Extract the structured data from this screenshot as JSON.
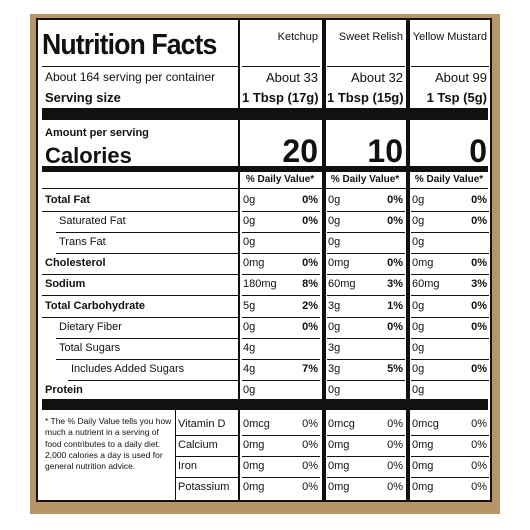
{
  "title": "Nutrition Facts",
  "servings_per_container": "About 164 serving per container",
  "serving_size_label": "Serving size",
  "amount_per_serving": "Amount per serving",
  "calories_label": "Calories",
  "dv_header": "% Daily Value*",
  "products": [
    {
      "name": "Ketchup",
      "servings": "About 33",
      "serving_size": "1 Tbsp (17g)",
      "calories": 20
    },
    {
      "name": "Sweet Relish",
      "servings": "About 32",
      "serving_size": "1 Tbsp (15g)",
      "calories": 10
    },
    {
      "name": "Yellow Mustard",
      "servings": "About 99",
      "serving_size": "1 Tsp (5g)",
      "calories": 0
    }
  ],
  "nutrients": [
    {
      "label": "Total Fat",
      "values": [
        {
          "amount": "0g",
          "dv": "0%"
        },
        {
          "amount": "0g",
          "dv": "0%"
        },
        {
          "amount": "0g",
          "dv": "0%"
        }
      ]
    },
    {
      "label": "Saturated Fat",
      "values": [
        {
          "amount": "0g",
          "dv": "0%"
        },
        {
          "amount": "0g",
          "dv": "0%"
        },
        {
          "amount": "0g",
          "dv": "0%"
        }
      ]
    },
    {
      "label": "Trans Fat",
      "values": [
        {
          "amount": "0g"
        },
        {
          "amount": "0g"
        },
        {
          "amount": "0g"
        }
      ]
    },
    {
      "label": "Cholesterol",
      "values": [
        {
          "amount": "0mg",
          "dv": "0%"
        },
        {
          "amount": "0mg",
          "dv": "0%"
        },
        {
          "amount": "0mg",
          "dv": "0%"
        }
      ]
    },
    {
      "label": "Sodium",
      "values": [
        {
          "amount": "180mg",
          "dv": "8%"
        },
        {
          "amount": "60mg",
          "dv": "3%"
        },
        {
          "amount": "60mg",
          "dv": "3%"
        }
      ]
    },
    {
      "label": "Total Carbohydrate",
      "values": [
        {
          "amount": "5g",
          "dv": "2%"
        },
        {
          "amount": "3g",
          "dv": "1%"
        },
        {
          "amount": "0g",
          "dv": "0%"
        }
      ]
    },
    {
      "label": "Dietary Fiber",
      "values": [
        {
          "amount": "0g",
          "dv": "0%"
        },
        {
          "amount": "0g",
          "dv": "0%"
        },
        {
          "amount": "0g",
          "dv": "0%"
        }
      ]
    },
    {
      "label": "Total Sugars",
      "values": [
        {
          "amount": "4g"
        },
        {
          "amount": "3g"
        },
        {
          "amount": "0g"
        }
      ]
    },
    {
      "label": "Includes Added Sugars",
      "values": [
        {
          "amount": "4g",
          "dv": "7%"
        },
        {
          "amount": "3g",
          "dv": "5%"
        },
        {
          "amount": "0g",
          "dv": "0%"
        }
      ]
    },
    {
      "label": "Protein",
      "values": [
        {
          "amount": "0g"
        },
        {
          "amount": "0g"
        },
        {
          "amount": "0g"
        }
      ]
    }
  ],
  "footnote": "* The % Daily Value tells you how much a nutrient in a serving of food contributes to a daily diet. 2,000 calories a day is used for general nutrition advice.",
  "vitamins": [
    {
      "label": "Vitamin D",
      "values": [
        {
          "amount": "0mcg",
          "dv": "0%"
        },
        {
          "amount": "0mcg",
          "dv": "0%"
        },
        {
          "amount": "0mcg",
          "dv": "0%"
        }
      ]
    },
    {
      "label": "Calcium",
      "values": [
        {
          "amount": "0mg",
          "dv": "0%"
        },
        {
          "amount": "0mg",
          "dv": "0%"
        },
        {
          "amount": "0mg",
          "dv": "0%"
        }
      ]
    },
    {
      "label": "Iron",
      "values": [
        {
          "amount": "0mg",
          "dv": "0%"
        },
        {
          "amount": "0mg",
          "dv": "0%"
        },
        {
          "amount": "0mg",
          "dv": "0%"
        }
      ]
    },
    {
      "label": "Potassium",
      "values": [
        {
          "amount": "0mg",
          "dv": "0%"
        },
        {
          "amount": "0mg",
          "dv": "0%"
        },
        {
          "amount": "0mg",
          "dv": "0%"
        }
      ]
    }
  ]
}
